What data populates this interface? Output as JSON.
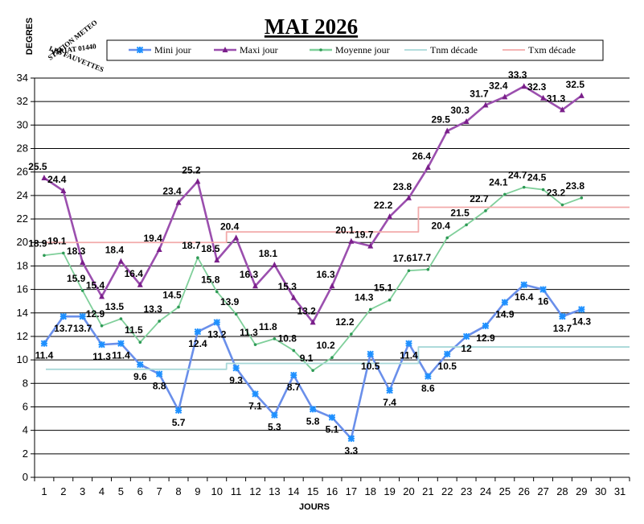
{
  "chart_data": {
    "type": "line",
    "title": "MAI 2026",
    "ylabel": "DEGRES",
    "xlabel": "JOURS",
    "ylim": [
      0,
      34
    ],
    "yticks": [
      0,
      2,
      4,
      6,
      8,
      10,
      12,
      14,
      16,
      18,
      20,
      22,
      24,
      26,
      28,
      30,
      32,
      34
    ],
    "categories": [
      "1",
      "2",
      "3",
      "4",
      "5",
      "6",
      "7",
      "8",
      "9",
      "10",
      "11",
      "12",
      "13",
      "14",
      "15",
      "16",
      "17",
      "18",
      "19",
      "20",
      "21",
      "22",
      "23",
      "24",
      "25",
      "26",
      "27",
      "28",
      "29",
      "30",
      "31"
    ],
    "grid": "horizontal",
    "legend_position": "top",
    "series": [
      {
        "name": "Mini jour",
        "color": "#6a8fea",
        "marker": "star",
        "labels": true,
        "values": [
          11.4,
          13.7,
          13.7,
          11.3,
          11.4,
          9.6,
          8.8,
          5.7,
          12.4,
          13.2,
          9.3,
          7.1,
          5.3,
          8.7,
          5.8,
          5.1,
          3.3,
          10.5,
          7.4,
          11.4,
          8.6,
          10.5,
          12,
          12.9,
          14.9,
          16.4,
          16,
          13.7,
          14.3,
          null,
          null
        ]
      },
      {
        "name": "Maxi jour",
        "color": "#9b4fae",
        "marker": "triangle",
        "labels": true,
        "values": [
          25.5,
          24.4,
          18.3,
          15.4,
          18.4,
          16.4,
          19.4,
          23.4,
          25.2,
          18.5,
          20.4,
          16.3,
          18.1,
          15.3,
          13.2,
          16.3,
          20.1,
          19.7,
          22.2,
          23.8,
          26.4,
          29.5,
          30.3,
          31.7,
          32.4,
          33.3,
          32.3,
          31.3,
          32.5,
          null,
          null
        ]
      },
      {
        "name": "Moyenne jour",
        "color": "#7fcf9a",
        "marker": "dot",
        "labels": true,
        "values": [
          18.9,
          19.1,
          15.9,
          12.9,
          13.5,
          11.5,
          13.3,
          14.5,
          18.7,
          15.8,
          13.9,
          11.3,
          11.8,
          10.8,
          9.1,
          10.2,
          12.2,
          14.3,
          15.1,
          17.6,
          17.7,
          20.4,
          21.5,
          22.7,
          24.1,
          24.7,
          24.5,
          23.2,
          23.8,
          null,
          null
        ]
      },
      {
        "name": "Tnm décade",
        "color": "#a8d8d8",
        "marker": "none",
        "labels": false,
        "values": [
          9.2,
          9.2,
          9.2,
          9.2,
          9.2,
          9.2,
          9.2,
          9.2,
          9.2,
          9.2,
          9.7,
          9.7,
          9.7,
          9.7,
          9.7,
          9.7,
          9.7,
          9.7,
          9.7,
          9.7,
          11.1,
          11.1,
          11.1,
          11.1,
          11.1,
          11.1,
          11.1,
          11.1,
          11.1,
          11.1,
          11.1
        ]
      },
      {
        "name": "Txm décade",
        "color": "#f2aaaa",
        "marker": "none",
        "labels": false,
        "values": [
          20,
          20,
          20,
          20,
          20,
          20,
          20,
          20,
          20,
          20,
          20.9,
          20.9,
          20.9,
          20.9,
          20.9,
          20.9,
          20.9,
          20.9,
          20.9,
          20.9,
          23,
          23,
          23,
          23,
          23,
          23,
          23,
          23,
          23,
          23,
          23
        ]
      }
    ]
  },
  "stamp": {
    "line1": "STATION METEO",
    "line2": "VIRIAT 01440",
    "line3": "LES FAUVETTES"
  }
}
